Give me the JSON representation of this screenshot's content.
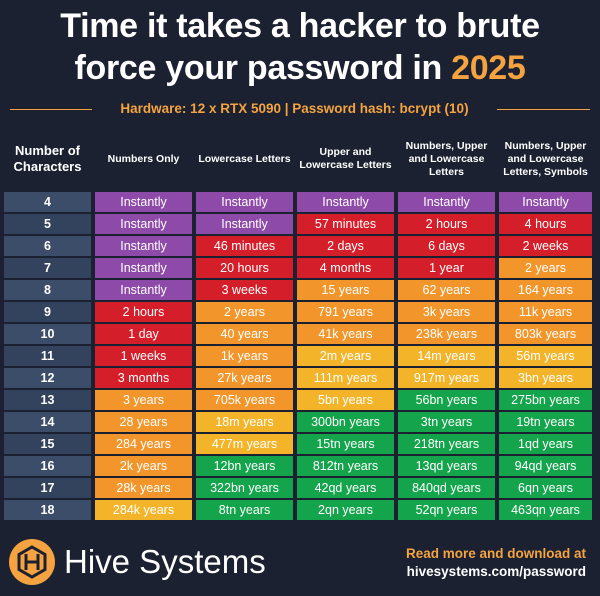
{
  "title_line1": "Time it takes a hacker to brute",
  "title_line2_prefix": "force your password in ",
  "title_year": "2025",
  "hardware_line": "Hardware: 12 x RTX 5090 | Password hash: bcrypt (10)",
  "colors": {
    "background": "#1b2130",
    "accent": "#f4a340",
    "instantly": "#8e4aa9",
    "seconds_hours": "#d41f2b",
    "weeks_months": "#d41f2b",
    "years_orange": "#f2962b",
    "years_yellow": "#f3b429",
    "green": "#14a44c",
    "row_label": "#3c4d6a"
  },
  "chart_data": {
    "type": "table",
    "columns": [
      "Number of Characters",
      "Numbers Only",
      "Lowercase Letters",
      "Upper and Lowercase Letters",
      "Numbers, Upper and Lowercase Letters",
      "Numbers, Upper and Lowercase Letters, Symbols"
    ],
    "rows": [
      {
        "chars": "4",
        "values": [
          "Instantly",
          "Instantly",
          "Instantly",
          "Instantly",
          "Instantly"
        ],
        "levels": [
          "purple",
          "purple",
          "purple",
          "purple",
          "purple"
        ]
      },
      {
        "chars": "5",
        "values": [
          "Instantly",
          "Instantly",
          "57 minutes",
          "2 hours",
          "4 hours"
        ],
        "levels": [
          "purple",
          "purple",
          "red",
          "red",
          "red"
        ]
      },
      {
        "chars": "6",
        "values": [
          "Instantly",
          "46 minutes",
          "2 days",
          "6 days",
          "2 weeks"
        ],
        "levels": [
          "purple",
          "red",
          "red",
          "red",
          "red"
        ]
      },
      {
        "chars": "7",
        "values": [
          "Instantly",
          "20 hours",
          "4 months",
          "1 year",
          "2 years"
        ],
        "levels": [
          "purple",
          "red",
          "red",
          "red",
          "orange"
        ]
      },
      {
        "chars": "8",
        "values": [
          "Instantly",
          "3 weeks",
          "15 years",
          "62 years",
          "164 years"
        ],
        "levels": [
          "purple",
          "red",
          "orange",
          "orange",
          "orange"
        ]
      },
      {
        "chars": "9",
        "values": [
          "2 hours",
          "2 years",
          "791 years",
          "3k years",
          "11k years"
        ],
        "levels": [
          "red",
          "orange",
          "orange",
          "orange",
          "orange"
        ]
      },
      {
        "chars": "10",
        "values": [
          "1 day",
          "40 years",
          "41k years",
          "238k years",
          "803k years"
        ],
        "levels": [
          "red",
          "orange",
          "orange",
          "orange",
          "orange"
        ]
      },
      {
        "chars": "11",
        "values": [
          "1 weeks",
          "1k years",
          "2m years",
          "14m years",
          "56m years"
        ],
        "levels": [
          "red",
          "orange",
          "yellow",
          "yellow",
          "yellow"
        ]
      },
      {
        "chars": "12",
        "values": [
          "3 months",
          "27k years",
          "111m years",
          "917m years",
          "3bn years"
        ],
        "levels": [
          "red",
          "orange",
          "yellow",
          "yellow",
          "yellow"
        ]
      },
      {
        "chars": "13",
        "values": [
          "3 years",
          "705k years",
          "5bn years",
          "56bn years",
          "275bn years"
        ],
        "levels": [
          "orange",
          "orange",
          "yellow",
          "green",
          "green"
        ]
      },
      {
        "chars": "14",
        "values": [
          "28 years",
          "18m years",
          "300bn years",
          "3tn years",
          "19tn years"
        ],
        "levels": [
          "orange",
          "yellow",
          "green",
          "green",
          "green"
        ]
      },
      {
        "chars": "15",
        "values": [
          "284 years",
          "477m years",
          "15tn years",
          "218tn years",
          "1qd years"
        ],
        "levels": [
          "orange",
          "yellow",
          "green",
          "green",
          "green"
        ]
      },
      {
        "chars": "16",
        "values": [
          "2k years",
          "12bn years",
          "812tn years",
          "13qd years",
          "94qd years"
        ],
        "levels": [
          "orange",
          "green",
          "green",
          "green",
          "green"
        ]
      },
      {
        "chars": "17",
        "values": [
          "28k years",
          "322bn years",
          "42qd years",
          "840qd years",
          "6qn years"
        ],
        "levels": [
          "orange",
          "green",
          "green",
          "green",
          "green"
        ]
      },
      {
        "chars": "18",
        "values": [
          "284k years",
          "8tn years",
          "2qn years",
          "52qn years",
          "463qn years"
        ],
        "levels": [
          "yellow",
          "green",
          "green",
          "green",
          "green"
        ]
      }
    ]
  },
  "footer": {
    "brand": "Hive Systems",
    "readmore": "Read more and download at",
    "url": "hivesystems.com/password",
    "logo_icon": "hive-logo-icon"
  }
}
